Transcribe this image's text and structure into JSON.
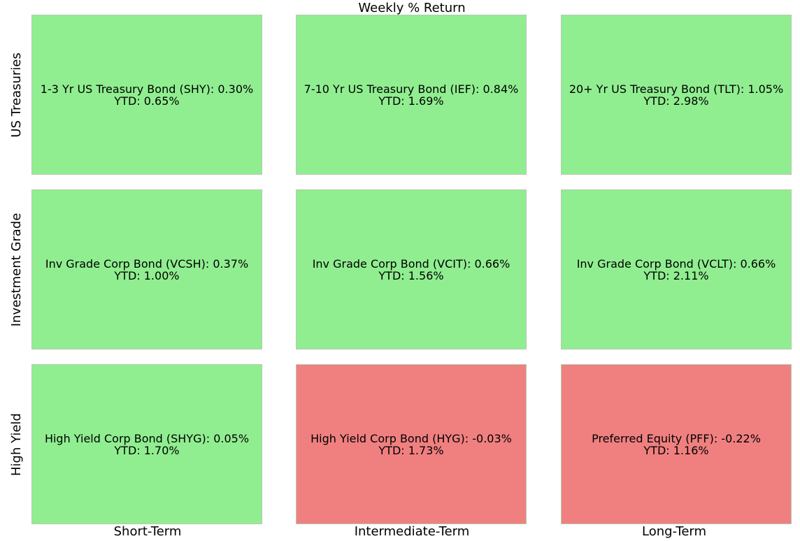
{
  "chart_data": {
    "type": "table",
    "title": "Weekly % Return",
    "rows": [
      "US Treasuries",
      "Investment Grade",
      "High Yield"
    ],
    "columns": [
      "Short-Term",
      "Intermediate-Term",
      "Long-Term"
    ],
    "cells": [
      {
        "name": "1-3 Yr US Treasury Bond (SHY)",
        "weekly": "0.30%",
        "ytd": "0.65%",
        "weekly_value": 0.3,
        "ytd_value": 0.65,
        "label": "1-3 Yr US Treasury Bond (SHY): 0.30%",
        "ytd_label": "YTD: 0.65%"
      },
      {
        "name": "7-10 Yr US Treasury Bond (IEF)",
        "weekly": "0.84%",
        "ytd": "1.69%",
        "weekly_value": 0.84,
        "ytd_value": 1.69,
        "label": "7-10 Yr US Treasury Bond (IEF): 0.84%",
        "ytd_label": "YTD: 1.69%"
      },
      {
        "name": "20+ Yr US Treasury Bond (TLT)",
        "weekly": "1.05%",
        "ytd": "2.98%",
        "weekly_value": 1.05,
        "ytd_value": 2.98,
        "label": "20+ Yr US Treasury Bond (TLT): 1.05%",
        "ytd_label": "YTD: 2.98%"
      },
      {
        "name": "Inv Grade Corp Bond (VCSH)",
        "weekly": "0.37%",
        "ytd": "1.00%",
        "weekly_value": 0.37,
        "ytd_value": 1.0,
        "label": "Inv Grade Corp Bond (VCSH): 0.37%",
        "ytd_label": "YTD: 1.00%"
      },
      {
        "name": "Inv Grade Corp Bond (VCIT)",
        "weekly": "0.66%",
        "ytd": "1.56%",
        "weekly_value": 0.66,
        "ytd_value": 1.56,
        "label": "Inv Grade Corp Bond (VCIT): 0.66%",
        "ytd_label": "YTD: 1.56%"
      },
      {
        "name": "Inv Grade Corp Bond (VCLT)",
        "weekly": "0.66%",
        "ytd": "2.11%",
        "weekly_value": 0.66,
        "ytd_value": 2.11,
        "label": "Inv Grade Corp Bond (VCLT): 0.66%",
        "ytd_label": "YTD: 2.11%"
      },
      {
        "name": "High Yield Corp Bond (SHYG)",
        "weekly": "0.05%",
        "ytd": "1.70%",
        "weekly_value": 0.05,
        "ytd_value": 1.7,
        "label": "High Yield Corp Bond (SHYG): 0.05%",
        "ytd_label": "YTD: 1.70%"
      },
      {
        "name": "High Yield Corp Bond (HYG)",
        "weekly": "-0.03%",
        "ytd": "1.73%",
        "weekly_value": -0.03,
        "ytd_value": 1.73,
        "label": "High Yield Corp Bond (HYG): -0.03%",
        "ytd_label": "YTD: 1.73%"
      },
      {
        "name": "Preferred Equity (PFF)",
        "weekly": "-0.22%",
        "ytd": "1.16%",
        "weekly_value": -0.22,
        "ytd_value": 1.16,
        "label": "Preferred Equity (PFF): -0.22%",
        "ytd_label": "YTD: 1.16%"
      }
    ],
    "colors": {
      "positive": "#90ee90",
      "negative": "#f08080"
    }
  }
}
